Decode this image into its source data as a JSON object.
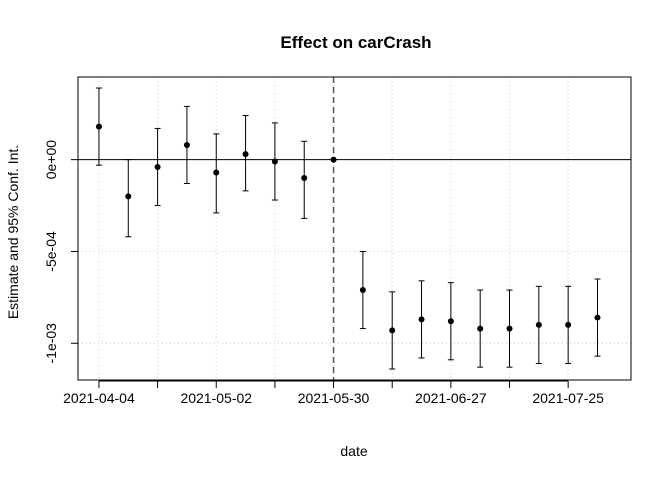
{
  "chart_data": {
    "type": "scatter",
    "title": "Effect on carCrash",
    "xlabel": "date",
    "ylabel": "Estimate and 95% Conf. Int.",
    "x": [
      "2021-04-04",
      "2021-04-11",
      "2021-04-18",
      "2021-04-25",
      "2021-05-02",
      "2021-05-09",
      "2021-05-16",
      "2021-05-23",
      "2021-05-30",
      "2021-06-06",
      "2021-06-13",
      "2021-06-20",
      "2021-06-27",
      "2021-07-04",
      "2021-07-11",
      "2021-07-18",
      "2021-07-25",
      "2021-08-01"
    ],
    "estimate": [
      0.00018,
      -0.0002,
      -4e-05,
      8e-05,
      -7e-05,
      3e-05,
      -1e-05,
      -0.0001,
      0.0,
      -0.00071,
      -0.00093,
      -0.00087,
      -0.00088,
      -0.00092,
      -0.00092,
      -0.0009,
      -0.0009,
      -0.00086
    ],
    "ci_lower": [
      -3e-05,
      -0.00042,
      -0.00025,
      -0.00013,
      -0.00029,
      -0.00017,
      -0.00022,
      -0.00032,
      0.0,
      -0.00092,
      -0.00114,
      -0.00108,
      -0.00109,
      -0.00113,
      -0.00113,
      -0.00111,
      -0.00111,
      -0.00107
    ],
    "ci_upper": [
      0.00039,
      0.0,
      0.00017,
      0.00029,
      0.00014,
      0.00024,
      0.0002,
      0.0001,
      0.0,
      -0.0005,
      -0.00072,
      -0.00066,
      -0.00067,
      -0.00071,
      -0.00071,
      -0.00069,
      -0.00069,
      -0.00065
    ],
    "xlim": [
      "2021-03-30",
      "2021-08-09"
    ],
    "ylim": [
      -0.0012,
      0.00045
    ],
    "xticks": [
      "2021-04-04",
      "2021-04-18",
      "2021-05-02",
      "2021-05-16",
      "2021-05-30",
      "2021-06-13",
      "2021-06-27",
      "2021-07-11",
      "2021-07-25"
    ],
    "xtick_labels": [
      "2021-04-04",
      "",
      "2021-05-02",
      "",
      "2021-05-30",
      "",
      "2021-06-27",
      "",
      "2021-07-25"
    ],
    "yticks": [
      0.0,
      -0.0005,
      -0.001
    ],
    "ytick_labels": [
      "0e+00",
      "-5e-04",
      "-1e-03"
    ],
    "reference_date": "2021-05-30",
    "reference_y": 0,
    "grid": true,
    "grid_style": "dotted",
    "point_color": "#000000",
    "line_color": "#000000"
  }
}
